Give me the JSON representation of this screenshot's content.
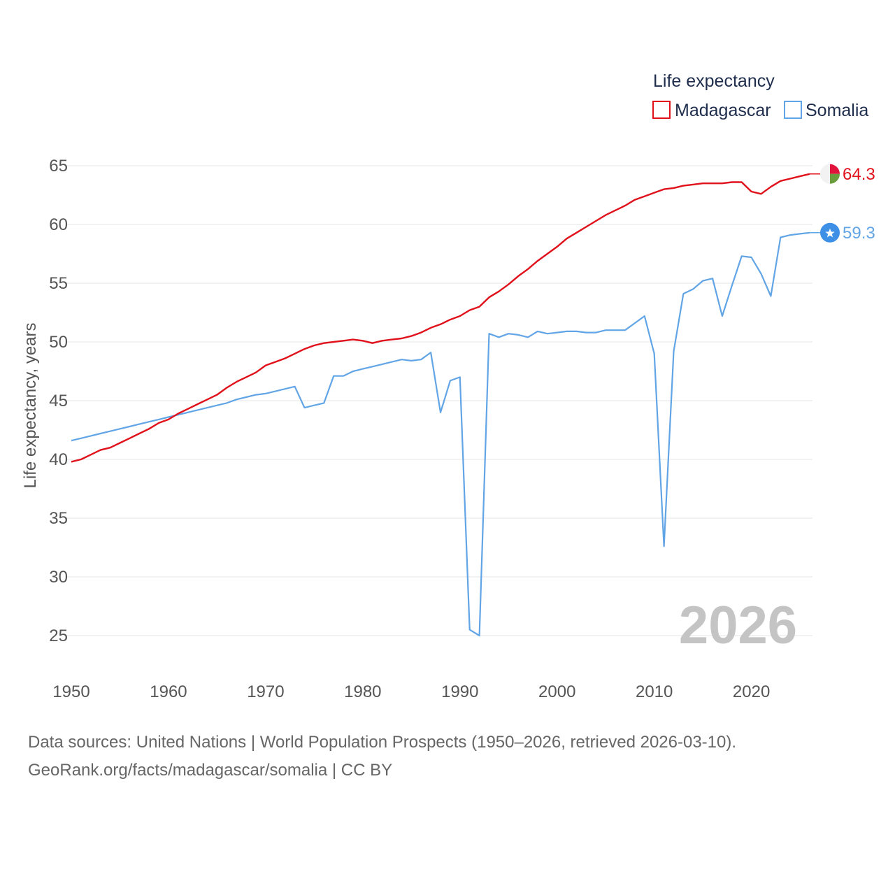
{
  "chart_data": {
    "type": "line",
    "title": "Life expectancy",
    "ylabel": "Life expectancy, years",
    "xlabel": "",
    "xlim": [
      1950,
      2026
    ],
    "ylim": [
      25,
      65
    ],
    "x_ticks": [
      1950,
      1960,
      1970,
      1980,
      1990,
      2000,
      2010,
      2020
    ],
    "y_ticks": [
      25,
      30,
      35,
      40,
      45,
      50,
      55,
      60,
      65
    ],
    "grid": true,
    "legend_position": "top-right",
    "year_watermark": "2026",
    "series": [
      {
        "name": "Madagascar",
        "color": "#e0111b",
        "end_label": "64.3",
        "icon": "madagascar-flag-icon",
        "x": [
          1950,
          1951,
          1952,
          1953,
          1954,
          1955,
          1956,
          1957,
          1958,
          1959,
          1960,
          1961,
          1962,
          1963,
          1964,
          1965,
          1966,
          1967,
          1968,
          1969,
          1970,
          1971,
          1972,
          1973,
          1974,
          1975,
          1976,
          1977,
          1978,
          1979,
          1980,
          1981,
          1982,
          1983,
          1984,
          1985,
          1986,
          1987,
          1988,
          1989,
          1990,
          1991,
          1992,
          1993,
          1994,
          1995,
          1996,
          1997,
          1998,
          1999,
          2000,
          2001,
          2002,
          2003,
          2004,
          2005,
          2006,
          2007,
          2008,
          2009,
          2010,
          2011,
          2012,
          2013,
          2014,
          2015,
          2016,
          2017,
          2018,
          2019,
          2020,
          2021,
          2022,
          2023,
          2024,
          2025,
          2026
        ],
        "values": [
          39.8,
          40.0,
          40.4,
          40.8,
          41.0,
          41.4,
          41.8,
          42.2,
          42.6,
          43.1,
          43.4,
          43.9,
          44.3,
          44.7,
          45.1,
          45.5,
          46.1,
          46.6,
          47.0,
          47.4,
          48.0,
          48.3,
          48.6,
          49.0,
          49.4,
          49.7,
          49.9,
          50.0,
          50.1,
          50.2,
          50.1,
          49.9,
          50.1,
          50.2,
          50.3,
          50.5,
          50.8,
          51.2,
          51.5,
          51.9,
          52.2,
          52.7,
          53.0,
          53.8,
          54.3,
          54.9,
          55.6,
          56.2,
          56.9,
          57.5,
          58.1,
          58.8,
          59.3,
          59.8,
          60.3,
          60.8,
          61.2,
          61.6,
          62.1,
          62.4,
          62.7,
          63.0,
          63.1,
          63.3,
          63.4,
          63.5,
          63.5,
          63.5,
          63.6,
          63.6,
          62.8,
          62.6,
          63.2,
          63.7,
          63.9,
          64.1,
          64.3
        ]
      },
      {
        "name": "Somalia",
        "color": "#62a5e6",
        "end_label": "59.3",
        "icon": "somalia-flag-icon",
        "x": [
          1950,
          1951,
          1952,
          1953,
          1954,
          1955,
          1956,
          1957,
          1958,
          1959,
          1960,
          1961,
          1962,
          1963,
          1964,
          1965,
          1966,
          1967,
          1968,
          1969,
          1970,
          1971,
          1972,
          1973,
          1974,
          1975,
          1976,
          1977,
          1978,
          1979,
          1980,
          1981,
          1982,
          1983,
          1984,
          1985,
          1986,
          1987,
          1988,
          1989,
          1990,
          1991,
          1992,
          1993,
          1994,
          1995,
          1996,
          1997,
          1998,
          1999,
          2000,
          2001,
          2002,
          2003,
          2004,
          2005,
          2006,
          2007,
          2008,
          2009,
          2010,
          2011,
          2012,
          2013,
          2014,
          2015,
          2016,
          2017,
          2018,
          2019,
          2020,
          2021,
          2022,
          2023,
          2024,
          2025,
          2026
        ],
        "values": [
          41.6,
          41.8,
          42.0,
          42.2,
          42.4,
          42.6,
          42.8,
          43.0,
          43.2,
          43.4,
          43.6,
          43.8,
          44.0,
          44.2,
          44.4,
          44.6,
          44.8,
          45.1,
          45.3,
          45.5,
          45.6,
          45.8,
          46.0,
          46.2,
          44.4,
          44.6,
          44.8,
          47.1,
          47.1,
          47.5,
          47.7,
          47.9,
          48.1,
          48.3,
          48.5,
          48.4,
          48.5,
          49.1,
          44.0,
          46.7,
          47.0,
          25.5,
          25.0,
          50.7,
          50.4,
          50.7,
          50.6,
          50.4,
          50.9,
          50.7,
          50.8,
          50.9,
          50.9,
          50.8,
          50.8,
          51.0,
          51.0,
          51.0,
          51.6,
          52.2,
          49.0,
          32.6,
          49.2,
          54.1,
          54.5,
          55.2,
          55.4,
          52.2,
          54.8,
          57.3,
          57.2,
          55.8,
          53.9,
          58.9,
          59.1,
          59.2,
          59.3
        ]
      }
    ]
  },
  "source": {
    "line1": "Data sources: United Nations | World Population Prospects (1950–2026, retrieved 2026-03-10).",
    "line2": "GeoRank.org/facts/madagascar/somalia | CC BY"
  }
}
